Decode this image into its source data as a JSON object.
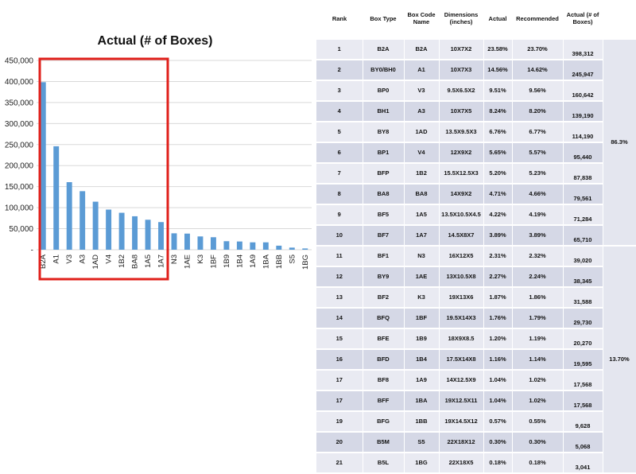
{
  "chart_data": {
    "type": "bar",
    "title": "Actual (# of Boxes)",
    "categories": [
      "B2A",
      "A1",
      "V3",
      "A3",
      "1AD",
      "V4",
      "1B2",
      "BA8",
      "1A5",
      "1A7",
      "N3",
      "1AE",
      "K3",
      "1BF",
      "1B9",
      "1B4",
      "1A9",
      "1BA",
      "1BB",
      "S5",
      "1BG"
    ],
    "values": [
      398312,
      245947,
      160642,
      139190,
      114190,
      95440,
      87838,
      79561,
      71284,
      65710,
      39020,
      38345,
      31588,
      29730,
      20270,
      19595,
      17568,
      17568,
      9628,
      5068,
      3041
    ],
    "yticks": [
      "-",
      "50,000",
      "100,000",
      "150,000",
      "200,000",
      "250,000",
      "300,000",
      "350,000",
      "400,000",
      "450,000"
    ],
    "ylim": [
      0,
      450000
    ],
    "grid": true,
    "bar_color": "#5b9bd5",
    "highlight_color": "#e0201b"
  },
  "table": {
    "headers": [
      "Rank",
      "Box Type",
      "Box Code Name",
      "Dimensions (inches)",
      "Actual",
      "Recommended",
      "Actual (# of Boxes)"
    ],
    "rows": [
      {
        "rank": "1",
        "type": "B2A",
        "code": "B2A",
        "dims": "10X7X2",
        "actual": "23.58%",
        "rec": "23.70%",
        "boxes": "398,312"
      },
      {
        "rank": "2",
        "type": "BY0/BH0",
        "code": "A1",
        "dims": "10X7X3",
        "actual": "14.56%",
        "rec": "14.62%",
        "boxes": "245,947"
      },
      {
        "rank": "3",
        "type": "BP0",
        "code": "V3",
        "dims": "9.5X6.5X2",
        "actual": "9.51%",
        "rec": "9.56%",
        "boxes": "160,642"
      },
      {
        "rank": "4",
        "type": "BH1",
        "code": "A3",
        "dims": "10X7X5",
        "actual": "8.24%",
        "rec": "8.20%",
        "boxes": "139,190"
      },
      {
        "rank": "5",
        "type": "BY8",
        "code": "1AD",
        "dims": "13.5X9.5X3",
        "actual": "6.76%",
        "rec": "6.77%",
        "boxes": "114,190"
      },
      {
        "rank": "6",
        "type": "BP1",
        "code": "V4",
        "dims": "12X9X2",
        "actual": "5.65%",
        "rec": "5.57%",
        "boxes": "95,440"
      },
      {
        "rank": "7",
        "type": "BFP",
        "code": "1B2",
        "dims": "15.5X12.5X3",
        "actual": "5.20%",
        "rec": "5.23%",
        "boxes": "87,838"
      },
      {
        "rank": "8",
        "type": "BA8",
        "code": "BA8",
        "dims": "14X9X2",
        "actual": "4.71%",
        "rec": "4.66%",
        "boxes": "79,561"
      },
      {
        "rank": "9",
        "type": "BF5",
        "code": "1A5",
        "dims": "13.5X10.5X4.5",
        "actual": "4.22%",
        "rec": "4.19%",
        "boxes": "71,284"
      },
      {
        "rank": "10",
        "type": "BF7",
        "code": "1A7",
        "dims": "14.5X8X7",
        "actual": "3.89%",
        "rec": "3.89%",
        "boxes": "65,710"
      },
      {
        "rank": "11",
        "type": "BF1",
        "code": "N3",
        "dims": "16X12X5",
        "actual": "2.31%",
        "rec": "2.32%",
        "boxes": "39,020"
      },
      {
        "rank": "12",
        "type": "BY9",
        "code": "1AE",
        "dims": "13X10.5X8",
        "actual": "2.27%",
        "rec": "2.24%",
        "boxes": "38,345"
      },
      {
        "rank": "13",
        "type": "BF2",
        "code": "K3",
        "dims": "19X13X6",
        "actual": "1.87%",
        "rec": "1.86%",
        "boxes": "31,588"
      },
      {
        "rank": "14",
        "type": "BFQ",
        "code": "1BF",
        "dims": "19.5X14X3",
        "actual": "1.76%",
        "rec": "1.79%",
        "boxes": "29,730"
      },
      {
        "rank": "15",
        "type": "BFE",
        "code": "1B9",
        "dims": "18X9X8.5",
        "actual": "1.20%",
        "rec": "1.19%",
        "boxes": "20,270"
      },
      {
        "rank": "16",
        "type": "BFD",
        "code": "1B4",
        "dims": "17.5X14X8",
        "actual": "1.16%",
        "rec": "1.14%",
        "boxes": "19,595"
      },
      {
        "rank": "17",
        "type": "BF8",
        "code": "1A9",
        "dims": "14X12.5X9",
        "actual": "1.04%",
        "rec": "1.02%",
        "boxes": "17,568"
      },
      {
        "rank": "17",
        "type": "BFF",
        "code": "1BA",
        "dims": "19X12.5X11",
        "actual": "1.04%",
        "rec": "1.02%",
        "boxes": "17,568"
      },
      {
        "rank": "19",
        "type": "BFG",
        "code": "1BB",
        "dims": "19X14.5X12",
        "actual": "0.57%",
        "rec": "0.55%",
        "boxes": "9,628"
      },
      {
        "rank": "20",
        "type": "B5M",
        "code": "S5",
        "dims": "22X18X12",
        "actual": "0.30%",
        "rec": "0.30%",
        "boxes": "5,068"
      },
      {
        "rank": "21",
        "type": "B5L",
        "code": "1BG",
        "dims": "22X18X5",
        "actual": "0.18%",
        "rec": "0.18%",
        "boxes": "3,041"
      }
    ],
    "group_top": "86.3%",
    "group_bottom": "13.70%"
  }
}
